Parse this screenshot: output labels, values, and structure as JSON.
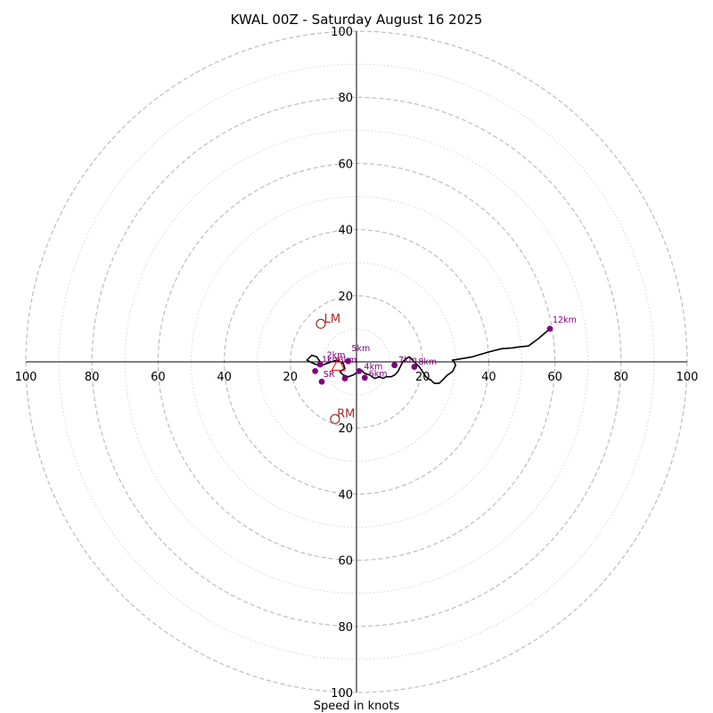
{
  "chart_data": {
    "type": "hodograph",
    "title": "KWAL 00Z - Saturday August 16 2025",
    "xlabel": "Speed in knots",
    "xlim": [
      -100,
      100
    ],
    "ylim": [
      -100,
      100
    ],
    "rings_major": [
      20,
      40,
      60,
      80,
      100
    ],
    "rings_minor": [
      10,
      30,
      50,
      70,
      90
    ],
    "tick_labels": [
      "100",
      "80",
      "60",
      "40",
      "20",
      "20",
      "40",
      "60",
      "80",
      "100"
    ],
    "tick_values": [
      -100,
      -80,
      -60,
      -40,
      -20,
      20,
      40,
      60,
      80,
      100
    ],
    "y_tick_labels": [
      "100",
      "80",
      "60",
      "40",
      "20",
      "20",
      "40",
      "60",
      "80",
      "100"
    ],
    "y_tick_values": [
      100,
      80,
      60,
      40,
      20,
      -20,
      -40,
      -60,
      -80,
      -100
    ],
    "hodograph_color": "#000000",
    "label_color": "#800080",
    "motion_color": "#a52a2a",
    "hodograph": {
      "u": [
        -11.5,
        -13,
        -15,
        -13.5,
        -12,
        -11,
        -10.5,
        -9,
        -6,
        -4,
        -3.5,
        -5,
        -4,
        -2.5,
        -1,
        0.5,
        1.5,
        2.5,
        4,
        5.5,
        7,
        8,
        9,
        10,
        10.5,
        11.5,
        12.5,
        13,
        14,
        15,
        16,
        17.5,
        19,
        20,
        21,
        21.5,
        22.5,
        23,
        23.5,
        25,
        26,
        27.5,
        29,
        30,
        29.5,
        29,
        35,
        40,
        44,
        47,
        49,
        52,
        55,
        58.5
      ],
      "v": [
        -1,
        -0.5,
        0.5,
        2,
        1.5,
        0,
        -1,
        -0.5,
        0.5,
        -0.5,
        -2,
        -3,
        -4,
        -4.5,
        -4,
        -3,
        -2.5,
        -3.5,
        -4,
        -5,
        -4.5,
        -5,
        -4.5,
        -4.5,
        -4.5,
        -4,
        -3,
        -2,
        0,
        1,
        1.5,
        0,
        -1.5,
        -3,
        -4.5,
        -5,
        -5.5,
        -6,
        -6.5,
        -6.5,
        -5.5,
        -4,
        -3,
        -1,
        0,
        0.5,
        1.5,
        3,
        4,
        4.2,
        4.5,
        4.8,
        7,
        10
      ]
    },
    "height_points": [
      {
        "label": "2km",
        "u": -11,
        "v": -0.8
      },
      {
        "label": "5km",
        "u": -2.5,
        "v": 0.2
      },
      {
        "label": "4km",
        "u": 0.8,
        "v": -2.8
      },
      {
        "label": "6km",
        "u": 2.5,
        "v": -4.8
      },
      {
        "label": "7km",
        "u": 11.5,
        "v": -1
      },
      {
        "label": "8km",
        "u": 17.5,
        "v": -1.5
      },
      {
        "label": "12km",
        "u": 58.5,
        "v": 10
      },
      {
        "label": "",
        "u": -12.5,
        "v": -2.8
      },
      {
        "label": "",
        "u": -10.5,
        "v": -6
      },
      {
        "label": "",
        "u": -3.5,
        "v": -5
      }
    ],
    "hodo_label_offsets": {
      "2km": [
        2,
        -2
      ],
      "5km": [
        1,
        -3
      ],
      "4km": [
        1.5,
        -0.5
      ],
      "6km": [
        1.2,
        -0.4
      ],
      "7km": [
        1.2,
        -0.7
      ],
      "8km": [
        1.2,
        -0.7
      ],
      "12km": [
        0.8,
        -1.8
      ]
    },
    "storm_motion": [
      {
        "label": "LM",
        "u": -10.8,
        "v": 11.5,
        "label_dx": 1,
        "label_dy": 1.5
      },
      {
        "label": "RM",
        "u": -6.5,
        "v": -17.3,
        "label_dx": 0.6,
        "label_dy": 1.5
      }
    ],
    "small_labels": [
      {
        "label": "1km",
        "u": -10.5,
        "v": -0.2
      },
      {
        "label": "3km",
        "u": -5.5,
        "v": -0.3
      },
      {
        "label": "SR",
        "u": -10,
        "v": -4.6
      }
    ],
    "mean_wind_triangle": {
      "u": -5.5,
      "v": -1.2,
      "size": 2.2,
      "color": "#ff0000"
    }
  }
}
